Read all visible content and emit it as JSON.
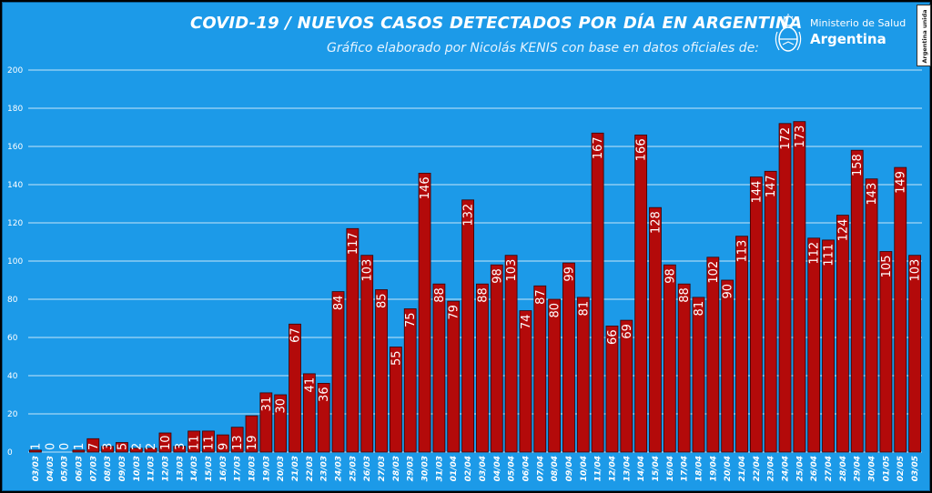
{
  "header": {
    "title": "COVID-19  /  NUEVOS CASOS DETECTADOS POR DÍA EN ARGENTINA",
    "subtitle": "Gráfico elaborado por Nicolás KENIS con base en datos oficiales de:"
  },
  "logo": {
    "line1": "Ministerio de Salud",
    "line2": "Argentina",
    "icon": "coat-of-arms-icon"
  },
  "badge": {
    "text": "Argentina unida"
  },
  "colors": {
    "background": "#1c9ae8",
    "bar": "#b30a0a",
    "bar_border": "#3a0000",
    "gridline": "#ffffff",
    "text": "#ffffff"
  },
  "chart_data": {
    "type": "bar",
    "ylim": [
      0,
      200
    ],
    "yticks": [
      0,
      20,
      40,
      60,
      80,
      100,
      120,
      140,
      160,
      180,
      200
    ],
    "grid": true,
    "categories": [
      "03/03",
      "04/03",
      "05/03",
      "06/03",
      "07/03",
      "08/03",
      "09/03",
      "10/03",
      "11/03",
      "12/03",
      "13/03",
      "14/03",
      "15/03",
      "16/03",
      "17/03",
      "18/03",
      "19/03",
      "20/03",
      "21/03",
      "22/03",
      "23/03",
      "24/03",
      "25/03",
      "26/03",
      "27/03",
      "28/03",
      "29/03",
      "30/03",
      "31/03",
      "01/04",
      "02/04",
      "03/04",
      "04/04",
      "05/04",
      "06/04",
      "07/04",
      "08/04",
      "09/04",
      "10/04",
      "11/04",
      "12/04",
      "13/04",
      "14/04",
      "15/04",
      "16/04",
      "17/04",
      "18/04",
      "19/04",
      "20/04",
      "21/04",
      "22/04",
      "23/04",
      "24/04",
      "25/04",
      "26/04",
      "27/04",
      "28/04",
      "29/04",
      "30/04",
      "01/05",
      "02/05",
      "03/05"
    ],
    "values": [
      1,
      0,
      0,
      1,
      7,
      3,
      5,
      2,
      2,
      10,
      3,
      11,
      11,
      9,
      13,
      19,
      31,
      30,
      67,
      41,
      36,
      84,
      117,
      103,
      85,
      55,
      75,
      146,
      88,
      79,
      132,
      88,
      98,
      103,
      74,
      87,
      80,
      99,
      81,
      167,
      66,
      69,
      166,
      128,
      98,
      88,
      81,
      102,
      90,
      113,
      144,
      147,
      172,
      173,
      112,
      111,
      124,
      158,
      143,
      105,
      149,
      103
    ]
  }
}
